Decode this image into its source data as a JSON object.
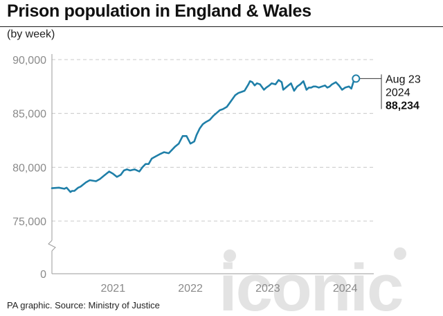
{
  "header": {
    "title": "Prison population in England & Wales",
    "subtitle": "(by week)"
  },
  "footer": {
    "source": "PA graphic. Source: Ministry of Justice"
  },
  "watermark": {
    "text": "iconic"
  },
  "colors": {
    "line": "#1f7fa8",
    "grid": "#c8c8c8",
    "axis": "#9a9a9a",
    "tick_label": "#8a8a8a",
    "watermark": "#e3e3e3"
  },
  "chart_data": {
    "type": "line",
    "title": "Prison population in England & Wales",
    "subtitle": "(by week)",
    "xlabel": "",
    "ylabel": "",
    "y_axis_break": true,
    "ylim": [
      75000,
      90000
    ],
    "y_ticks": [
      0,
      75000,
      80000,
      85000,
      90000
    ],
    "y_tick_labels": [
      "0",
      "75,000",
      "80,000",
      "85,000",
      "90,000"
    ],
    "x_tick_labels": [
      "2021",
      "2022",
      "2023",
      "2024"
    ],
    "x_tick_positions": [
      2021.5,
      2022.5,
      2023.5,
      2024.5
    ],
    "xlim": [
      2020.71,
      2024.87
    ],
    "grid": "horizontal dashed",
    "series": [
      {
        "name": "Prison population",
        "x": [
          2020.71,
          2020.8,
          2020.87,
          2020.9,
          2020.95,
          2020.97,
          2021.0,
          2021.05,
          2021.08,
          2021.15,
          2021.2,
          2021.28,
          2021.33,
          2021.38,
          2021.45,
          2021.5,
          2021.55,
          2021.6,
          2021.64,
          2021.68,
          2021.72,
          2021.78,
          2021.84,
          2021.88,
          2021.92,
          2021.96,
          2022.0,
          2022.05,
          2022.1,
          2022.16,
          2022.22,
          2022.3,
          2022.35,
          2022.4,
          2022.45,
          2022.5,
          2022.55,
          2022.58,
          2022.62,
          2022.66,
          2022.7,
          2022.75,
          2022.8,
          2022.88,
          2022.92,
          2022.97,
          2023.0,
          2023.05,
          2023.08,
          2023.12,
          2023.16,
          2023.2,
          2023.25,
          2023.27,
          2023.3,
          2023.33,
          2023.36,
          2023.4,
          2023.45,
          2023.48,
          2023.52,
          2023.55,
          2023.6,
          2023.64,
          2023.68,
          2023.7,
          2023.75,
          2023.8,
          2023.84,
          2023.88,
          2023.92,
          2023.96,
          2024.0,
          2024.03,
          2024.06,
          2024.09,
          2024.12,
          2024.16,
          2024.2,
          2024.24,
          2024.27,
          2024.3,
          2024.33,
          2024.38,
          2024.42,
          2024.46,
          2024.5,
          2024.55,
          2024.58,
          2024.61,
          2024.64
        ],
        "y": [
          78050,
          78100,
          78000,
          78100,
          77700,
          77800,
          77800,
          78100,
          78200,
          78600,
          78800,
          78700,
          78900,
          79200,
          79600,
          79400,
          79100,
          79300,
          79700,
          79800,
          79700,
          79800,
          79600,
          80000,
          80300,
          80300,
          80800,
          81000,
          81200,
          81400,
          81300,
          81900,
          82200,
          82900,
          82900,
          82200,
          82400,
          83000,
          83600,
          84000,
          84200,
          84400,
          84800,
          85300,
          85400,
          85600,
          85900,
          86400,
          86700,
          86900,
          87000,
          87100,
          87700,
          88000,
          87900,
          87600,
          87800,
          87700,
          87200,
          87400,
          87600,
          87800,
          87700,
          88100,
          87900,
          87200,
          87500,
          87800,
          87100,
          87500,
          87700,
          88000,
          87200,
          87400,
          87400,
          87500,
          87500,
          87400,
          87500,
          87600,
          87400,
          87500,
          87700,
          87900,
          87600,
          87200,
          87400,
          87500,
          87300,
          88000,
          88234
        ]
      }
    ],
    "annotation": {
      "date_line1": "Aug 23",
      "date_line2": "2024",
      "value": "88,234",
      "x": 2024.64,
      "y": 88234
    }
  }
}
